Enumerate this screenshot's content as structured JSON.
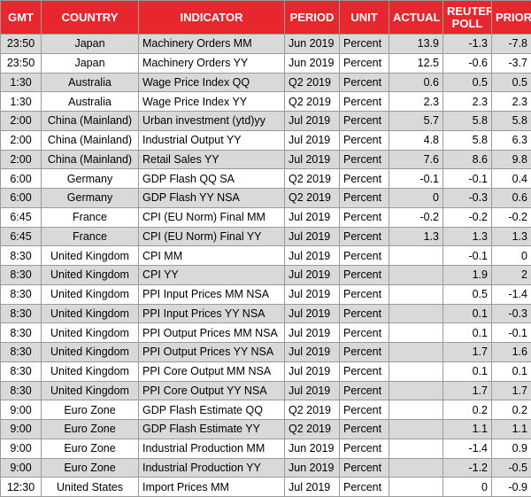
{
  "headers": {
    "gmt": "GMT",
    "country": "COUNTRY",
    "indicator": "INDICATOR",
    "period": "PERIOD",
    "unit": "UNIT",
    "actual": "ACTUAL",
    "poll_line1": "REUTERS",
    "poll_line2": "POLL",
    "prior": "PRIOR"
  },
  "rows": [
    {
      "gmt": "23:50",
      "country": "Japan",
      "indicator": "Machinery Orders MM",
      "period": "Jun 2019",
      "unit": "Percent",
      "actual": "13.9",
      "poll": "-1.3",
      "prior": "-7.8",
      "shaded": true
    },
    {
      "gmt": "23:50",
      "country": "Japan",
      "indicator": "Machinery Orders YY",
      "period": "Jun 2019",
      "unit": "Percent",
      "actual": "12.5",
      "poll": "-0.6",
      "prior": "-3.7",
      "shaded": false
    },
    {
      "gmt": "1:30",
      "country": "Australia",
      "indicator": "Wage Price Index QQ",
      "period": "Q2 2019",
      "unit": "Percent",
      "actual": "0.6",
      "poll": "0.5",
      "prior": "0.5",
      "shaded": true
    },
    {
      "gmt": "1:30",
      "country": "Australia",
      "indicator": "Wage Price Index YY",
      "period": "Q2 2019",
      "unit": "Percent",
      "actual": "2.3",
      "poll": "2.3",
      "prior": "2.3",
      "shaded": false
    },
    {
      "gmt": "2:00",
      "country": "China (Mainland)",
      "indicator": "Urban investment (ytd)yy",
      "period": "Jul 2019",
      "unit": "Percent",
      "actual": "5.7",
      "poll": "5.8",
      "prior": "5.8",
      "shaded": true
    },
    {
      "gmt": "2:00",
      "country": "China (Mainland)",
      "indicator": "Industrial Output YY",
      "period": "Jul 2019",
      "unit": "Percent",
      "actual": "4.8",
      "poll": "5.8",
      "prior": "6.3",
      "shaded": false
    },
    {
      "gmt": "2:00",
      "country": "China (Mainland)",
      "indicator": "Retail Sales YY",
      "period": "Jul 2019",
      "unit": "Percent",
      "actual": "7.6",
      "poll": "8.6",
      "prior": "9.8",
      "shaded": true
    },
    {
      "gmt": "6:00",
      "country": "Germany",
      "indicator": "GDP Flash QQ SA",
      "period": "Q2 2019",
      "unit": "Percent",
      "actual": "-0.1",
      "poll": "-0.1",
      "prior": "0.4",
      "shaded": false
    },
    {
      "gmt": "6:00",
      "country": "Germany",
      "indicator": "GDP Flash YY NSA",
      "period": "Q2 2019",
      "unit": "Percent",
      "actual": "0",
      "poll": "-0.3",
      "prior": "0.6",
      "shaded": true
    },
    {
      "gmt": "6:45",
      "country": "France",
      "indicator": "CPI (EU Norm) Final MM",
      "period": "Jul 2019",
      "unit": "Percent",
      "actual": "-0.2",
      "poll": "-0.2",
      "prior": "-0.2",
      "shaded": false
    },
    {
      "gmt": "6:45",
      "country": "France",
      "indicator": "CPI (EU Norm) Final YY",
      "period": "Jul 2019",
      "unit": "Percent",
      "actual": "1.3",
      "poll": "1.3",
      "prior": "1.3",
      "shaded": true
    },
    {
      "gmt": "8:30",
      "country": "United Kingdom",
      "indicator": "CPI MM",
      "period": "Jul 2019",
      "unit": "Percent",
      "actual": "",
      "poll": "-0.1",
      "prior": "0",
      "shaded": false
    },
    {
      "gmt": "8:30",
      "country": "United Kingdom",
      "indicator": "CPI YY",
      "period": "Jul 2019",
      "unit": "Percent",
      "actual": "",
      "poll": "1.9",
      "prior": "2",
      "shaded": true
    },
    {
      "gmt": "8:30",
      "country": "United Kingdom",
      "indicator": "PPI Input Prices MM NSA",
      "period": "Jul 2019",
      "unit": "Percent",
      "actual": "",
      "poll": "0.5",
      "prior": "-1.4",
      "shaded": false
    },
    {
      "gmt": "8:30",
      "country": "United Kingdom",
      "indicator": "PPI Input Prices YY NSA",
      "period": "Jul 2019",
      "unit": "Percent",
      "actual": "",
      "poll": "0.1",
      "prior": "-0.3",
      "shaded": true
    },
    {
      "gmt": "8:30",
      "country": "United Kingdom",
      "indicator": "PPI Output Prices MM NSA",
      "period": "Jul 2019",
      "unit": "Percent",
      "actual": "",
      "poll": "0.1",
      "prior": "-0.1",
      "shaded": false
    },
    {
      "gmt": "8:30",
      "country": "United Kingdom",
      "indicator": "PPI Output Prices YY NSA",
      "period": "Jul 2019",
      "unit": "Percent",
      "actual": "",
      "poll": "1.7",
      "prior": "1.6",
      "shaded": true
    },
    {
      "gmt": "8:30",
      "country": "United Kingdom",
      "indicator": "PPI Core Output MM NSA",
      "period": "Jul 2019",
      "unit": "Percent",
      "actual": "",
      "poll": "0.1",
      "prior": "0.1",
      "shaded": false
    },
    {
      "gmt": "8:30",
      "country": "United Kingdom",
      "indicator": "PPI Core Output YY NSA",
      "period": "Jul 2019",
      "unit": "Percent",
      "actual": "",
      "poll": "1.7",
      "prior": "1.7",
      "shaded": true
    },
    {
      "gmt": "9:00",
      "country": "Euro Zone",
      "indicator": "GDP Flash Estimate QQ",
      "period": "Q2 2019",
      "unit": "Percent",
      "actual": "",
      "poll": "0.2",
      "prior": "0.2",
      "shaded": false
    },
    {
      "gmt": "9:00",
      "country": "Euro Zone",
      "indicator": "GDP Flash Estimate YY",
      "period": "Q2 2019",
      "unit": "Percent",
      "actual": "",
      "poll": "1.1",
      "prior": "1.1",
      "shaded": true
    },
    {
      "gmt": "9:00",
      "country": "Euro Zone",
      "indicator": "Industrial Production MM",
      "period": "Jun 2019",
      "unit": "Percent",
      "actual": "",
      "poll": "-1.4",
      "prior": "0.9",
      "shaded": false
    },
    {
      "gmt": "9:00",
      "country": "Euro Zone",
      "indicator": "Industrial Production YY",
      "period": "Jun 2019",
      "unit": "Percent",
      "actual": "",
      "poll": "-1.2",
      "prior": "-0.5",
      "shaded": true
    },
    {
      "gmt": "12:30",
      "country": "United States",
      "indicator": "Import Prices MM",
      "period": "Jul 2019",
      "unit": "Percent",
      "actual": "",
      "poll": "0",
      "prior": "-0.9",
      "shaded": false
    }
  ]
}
